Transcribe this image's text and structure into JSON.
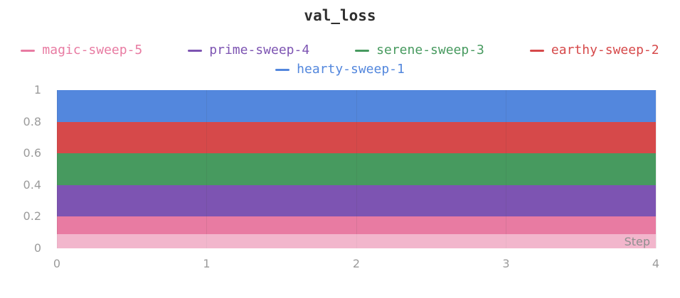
{
  "chart_data": {
    "type": "area",
    "stacked": true,
    "title": "val_loss",
    "xlabel": "Step",
    "ylabel": "",
    "x": [
      0,
      1,
      2,
      3,
      4
    ],
    "xticks": [
      0,
      1,
      2,
      3,
      4
    ],
    "yticks": [
      0,
      0.2,
      0.4,
      0.6,
      0.8,
      1
    ],
    "xlim": [
      0,
      4
    ],
    "ylim": [
      0,
      1
    ],
    "grid": "vertical",
    "legend_position": "top",
    "series": [
      {
        "name": "magic-sweep-5",
        "color": "#E87BA2",
        "values": [
          0.2,
          0.2,
          0.2,
          0.2,
          0.2
        ]
      },
      {
        "name": "prime-sweep-4",
        "color": "#7D54B2",
        "values": [
          0.2,
          0.2,
          0.2,
          0.2,
          0.2
        ]
      },
      {
        "name": "serene-sweep-3",
        "color": "#479A5F",
        "values": [
          0.2,
          0.2,
          0.2,
          0.2,
          0.2
        ]
      },
      {
        "name": "earthy-sweep-2",
        "color": "#D6494A",
        "values": [
          0.2,
          0.2,
          0.2,
          0.2,
          0.2
        ]
      },
      {
        "name": "hearty-sweep-1",
        "color": "#5387DD",
        "values": [
          0.2,
          0.2,
          0.2,
          0.2,
          0.2
        ]
      }
    ]
  }
}
